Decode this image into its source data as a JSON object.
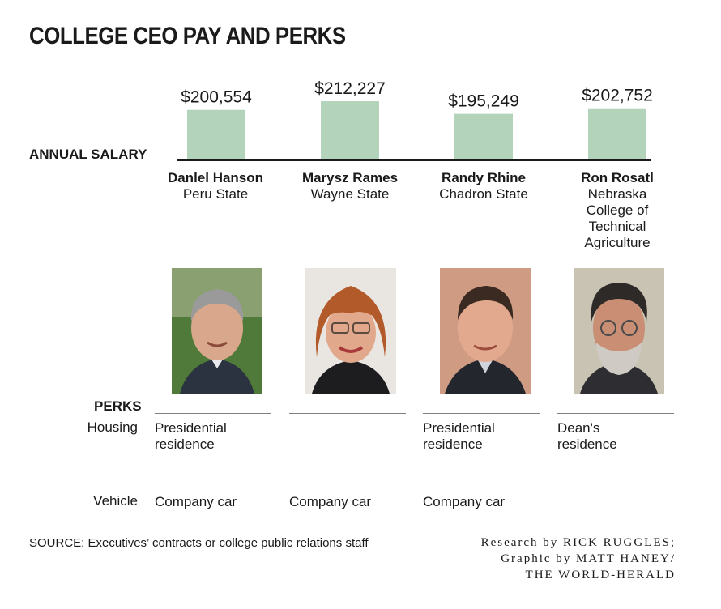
{
  "title": "COLLEGE CEO PAY AND PERKS",
  "salary_label": "ANNUAL SALARY",
  "colors": {
    "bar": "#b3d4bb",
    "baseline": "#1a1a1a",
    "rule": "#7f7f7f"
  },
  "chart_data": {
    "type": "bar",
    "categories": [
      "Danlel Hanson",
      "Marysz Rames",
      "Randy Rhine",
      "Ron Rosatl"
    ],
    "values": [
      200554,
      212227,
      195249,
      202752
    ],
    "value_labels": [
      "$200,554",
      "$212,227",
      "$195,249",
      "$202,752"
    ],
    "ylabel": "ANNUAL SALARY"
  },
  "ceos": [
    {
      "name": "Danlel Hanson",
      "school": "Peru State",
      "photo_icon": "portrait-man-gray-hair"
    },
    {
      "name": "Marysz Rames",
      "school": "Wayne State",
      "photo_icon": "portrait-woman-glasses"
    },
    {
      "name": "Randy Rhine",
      "school": "Chadron State",
      "photo_icon": "portrait-man-dark-hair"
    },
    {
      "name": "Ron Rosatl",
      "school": "Nebraska\nCollege of\nTechnical\nAgriculture",
      "photo_icon": "portrait-man-beard-glasses"
    }
  ],
  "perks": {
    "label": "PERKS",
    "housing_label": "Housing",
    "vehicle_label": "Vehicle",
    "housing": [
      "Presidential\nresidence",
      "",
      "Presidential\nresidence",
      "Dean's\nresidence"
    ],
    "vehicle": [
      "Company car",
      "Company car",
      "Company car",
      ""
    ]
  },
  "source": "SOURCE: Executives’ contracts or college public relations staff",
  "credit": [
    "Research by RICK RUGGLES;",
    "Graphic by MATT HANEY/",
    "THE WORLD-HERALD"
  ]
}
